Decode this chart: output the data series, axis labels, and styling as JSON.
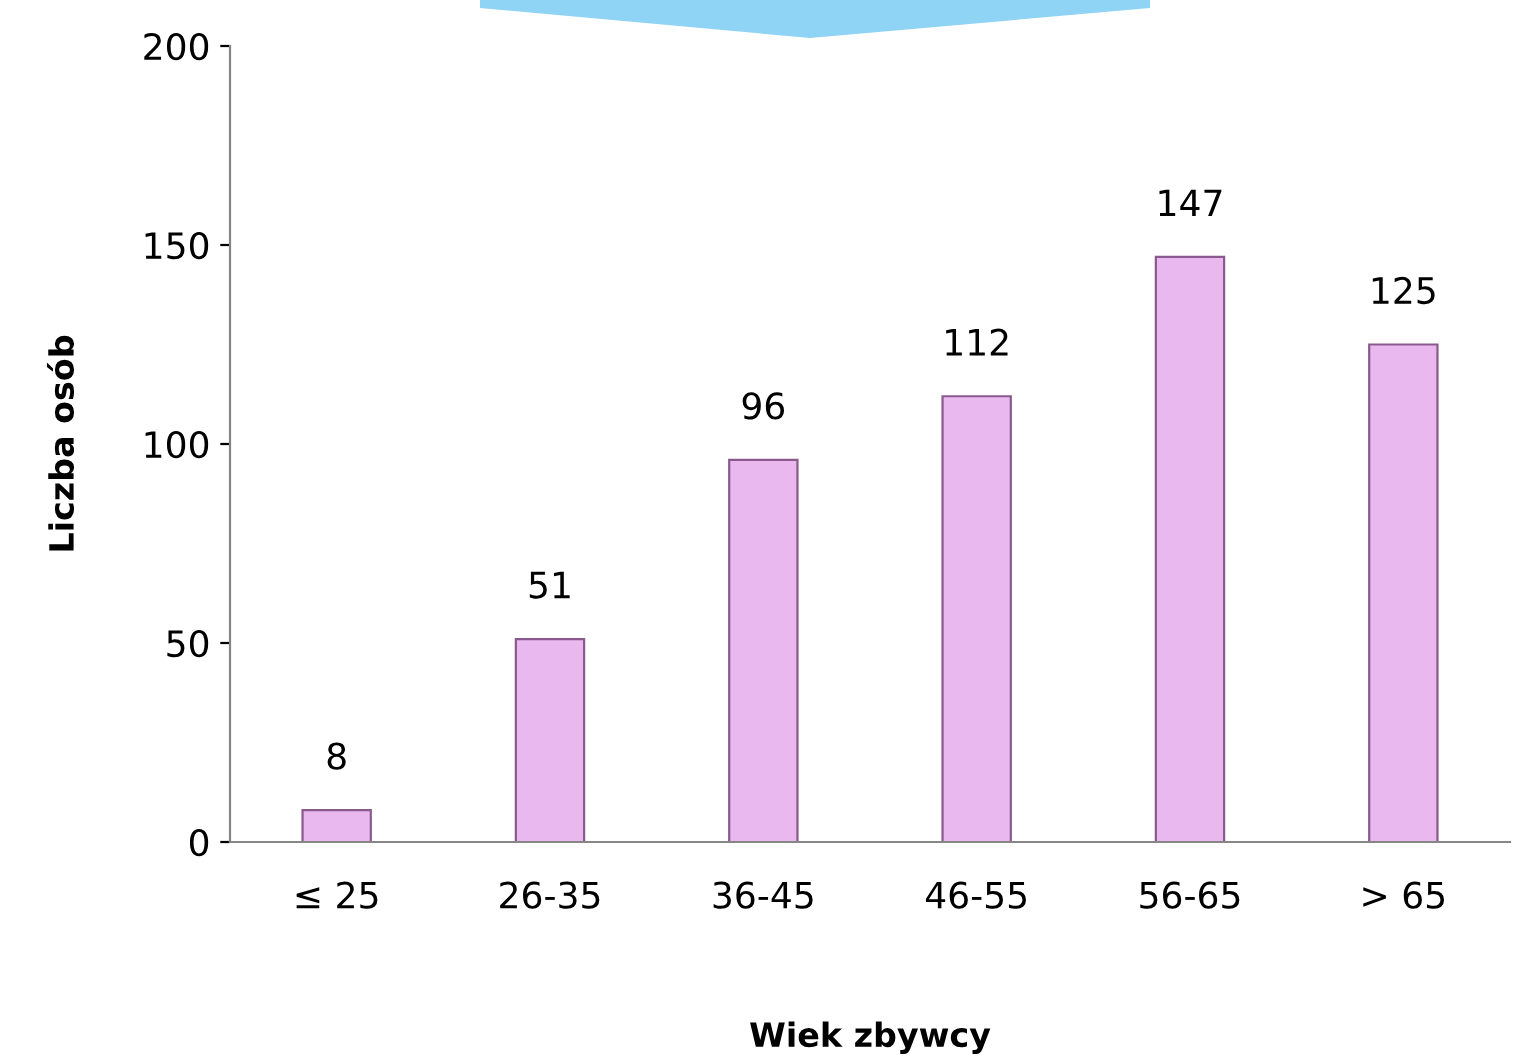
{
  "chart_data": {
    "type": "bar",
    "xlabel": "Wiek zbywcy",
    "ylabel": "Liczba osób",
    "categories": [
      "≤ 25",
      "26-35",
      "36-45",
      "46-55",
      "56-65",
      "> 65"
    ],
    "values": [
      8,
      51,
      96,
      112,
      147,
      125
    ],
    "color": "#e9b8ee",
    "ylim": [
      0,
      200
    ],
    "yticks": [
      0,
      50,
      100,
      150,
      200
    ],
    "grid": false,
    "data_labels": true
  }
}
